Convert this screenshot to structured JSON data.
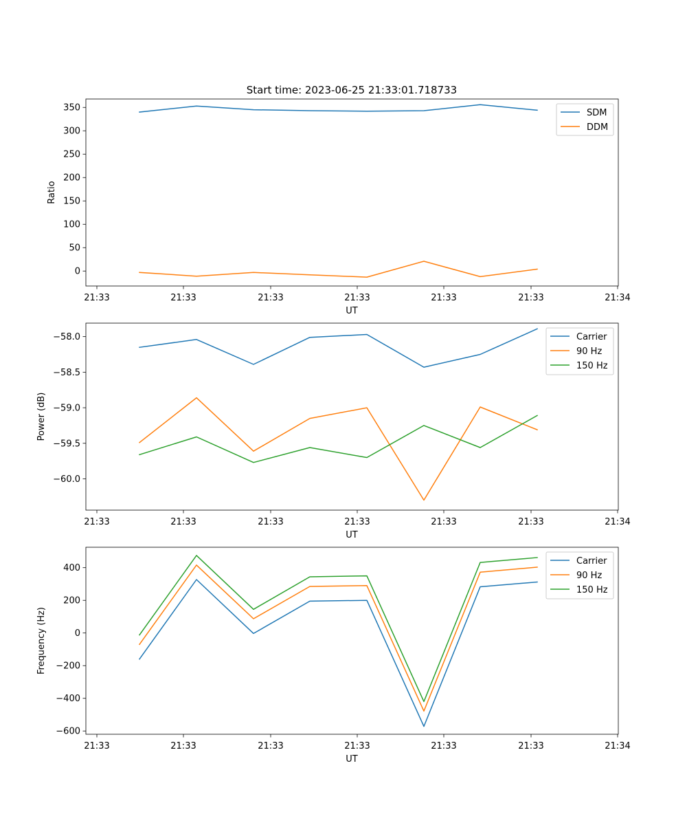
{
  "figure_title": "Start time: 2023-06-25 21:33:01.718733",
  "colors": {
    "blue": "#1f77b4",
    "orange": "#ff7f0e",
    "green": "#2ca02c"
  },
  "chart_data": [
    {
      "type": "line",
      "title": "Start time: 2023-06-25 21:33:01.718733",
      "xlabel": "UT",
      "ylabel": "Ratio",
      "x_tick_labels": [
        "21:33",
        "21:33",
        "21:33",
        "21:33",
        "21:33",
        "21:33",
        "21:34"
      ],
      "ylim": [
        -32,
        368
      ],
      "y_ticks": [
        0,
        50,
        100,
        150,
        200,
        250,
        300,
        350
      ],
      "legend_position": "upper right",
      "series": [
        {
          "name": "SDM",
          "color": "#1f77b4",
          "values": [
            340,
            353,
            345,
            343,
            342,
            343,
            356,
            344
          ]
        },
        {
          "name": "DDM",
          "color": "#ff7f0e",
          "values": [
            -3,
            -11,
            -3,
            -8,
            -13,
            21,
            -12,
            4
          ]
        }
      ]
    },
    {
      "type": "line",
      "title": "",
      "xlabel": "UT",
      "ylabel": "Power (dB)",
      "x_tick_labels": [
        "21:33",
        "21:33",
        "21:33",
        "21:33",
        "21:33",
        "21:33",
        "21:34"
      ],
      "ylim": [
        -60.44,
        -57.81
      ],
      "y_ticks": [
        -60.0,
        -59.5,
        -59.0,
        -58.5,
        -58.0
      ],
      "y_tick_labels": [
        "−60.0",
        "−59.5",
        "−59.0",
        "−58.5",
        "−58.0"
      ],
      "legend_position": "upper right",
      "series": [
        {
          "name": "Carrier",
          "color": "#1f77b4",
          "values": [
            -58.15,
            -58.04,
            -58.39,
            -58.01,
            -57.97,
            -58.43,
            -58.25,
            -57.89
          ]
        },
        {
          "name": "90 Hz",
          "color": "#ff7f0e",
          "values": [
            -59.49,
            -58.86,
            -59.61,
            -59.15,
            -59.0,
            -60.3,
            -58.99,
            -59.31
          ]
        },
        {
          "name": "150 Hz",
          "color": "#2ca02c",
          "values": [
            -59.66,
            -59.41,
            -59.77,
            -59.56,
            -59.7,
            -59.25,
            -59.56,
            -59.11
          ]
        }
      ]
    },
    {
      "type": "line",
      "title": "",
      "xlabel": "UT",
      "ylabel": "Frequency (Hz)",
      "x_tick_labels": [
        "21:33",
        "21:33",
        "21:33",
        "21:33",
        "21:33",
        "21:33",
        "21:34"
      ],
      "ylim": [
        -620,
        525
      ],
      "y_ticks": [
        -600,
        -400,
        -200,
        0,
        200,
        400
      ],
      "y_tick_labels": [
        "−600",
        "−400",
        "−200",
        "0",
        "200",
        "400"
      ],
      "legend_position": "upper right",
      "series": [
        {
          "name": "Carrier",
          "color": "#1f77b4",
          "values": [
            -160,
            327,
            -3,
            195,
            200,
            -572,
            283,
            312
          ]
        },
        {
          "name": "90 Hz",
          "color": "#ff7f0e",
          "values": [
            -70,
            416,
            87,
            285,
            290,
            -478,
            372,
            403
          ]
        },
        {
          "name": "150 Hz",
          "color": "#2ca02c",
          "values": [
            -12,
            475,
            145,
            344,
            350,
            -420,
            432,
            462
          ]
        }
      ]
    }
  ]
}
